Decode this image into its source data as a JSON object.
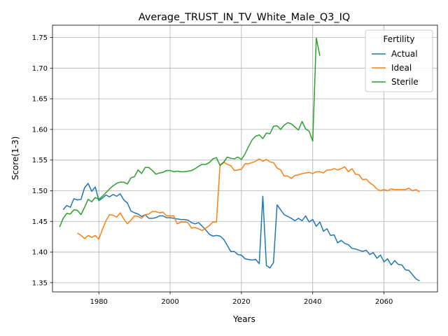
{
  "chart_data": {
    "type": "line",
    "title": "Average_TRUST_IN_TV_White_Male_Q3_IQ",
    "xlabel": "Years",
    "ylabel": "Score(1-3)",
    "xlim": [
      1967,
      2075
    ],
    "ylim": [
      1.335,
      1.77
    ],
    "x_ticks": [
      1980,
      2000,
      2020,
      2040,
      2060
    ],
    "y_ticks": [
      1.35,
      1.4,
      1.45,
      1.5,
      1.55,
      1.6,
      1.65,
      1.7,
      1.75
    ],
    "grid": true,
    "legend": {
      "title": "Fertility",
      "placement": "top-right"
    },
    "series": [
      {
        "name": "Actual",
        "color": "#1f77b4",
        "x": [
          1970,
          1971,
          1972,
          1973,
          1974,
          1975,
          1976,
          1977,
          1978,
          1979,
          1980,
          1981,
          1982,
          1983,
          1984,
          1985,
          1986,
          1987,
          1988,
          1989,
          1990,
          1991,
          1992,
          1993,
          1994,
          1995,
          1996,
          1997,
          1998,
          1999,
          2000,
          2001,
          2002,
          2003,
          2004,
          2005,
          2006,
          2007,
          2008,
          2009,
          2010,
          2011,
          2012,
          2013,
          2014,
          2015,
          2016,
          2017,
          2018,
          2019,
          2020,
          2021,
          2022,
          2023,
          2024,
          2025,
          2026,
          2027,
          2028,
          2029,
          2030,
          2031,
          2032,
          2033,
          2034,
          2035,
          2036,
          2037,
          2038,
          2039,
          2040,
          2041,
          2042,
          2043,
          2044,
          2045,
          2046,
          2047,
          2048,
          2049,
          2050,
          2051,
          2052,
          2053,
          2054,
          2055,
          2056,
          2057,
          2058,
          2059,
          2060,
          2061,
          2062,
          2063,
          2064,
          2065,
          2066,
          2067,
          2068,
          2069,
          2070
        ],
        "values": [
          1.469,
          1.476,
          1.473,
          1.487,
          1.485,
          1.486,
          1.505,
          1.512,
          1.499,
          1.506,
          1.484,
          1.488,
          1.493,
          1.49,
          1.494,
          1.491,
          1.495,
          1.485,
          1.48,
          1.467,
          1.464,
          1.462,
          1.458,
          1.461,
          1.455,
          1.455,
          1.456,
          1.459,
          1.459,
          1.456,
          1.456,
          1.455,
          1.454,
          1.453,
          1.453,
          1.452,
          1.448,
          1.446,
          1.448,
          1.442,
          1.436,
          1.429,
          1.426,
          1.427,
          1.426,
          1.421,
          1.411,
          1.401,
          1.401,
          1.396,
          1.395,
          1.389,
          1.388,
          1.387,
          1.388,
          1.381,
          1.491,
          1.378,
          1.374,
          1.383,
          1.477,
          1.469,
          1.461,
          1.458,
          1.455,
          1.451,
          1.455,
          1.451,
          1.459,
          1.449,
          1.453,
          1.442,
          1.449,
          1.434,
          1.438,
          1.427,
          1.428,
          1.415,
          1.419,
          1.414,
          1.412,
          1.406,
          1.405,
          1.403,
          1.401,
          1.403,
          1.396,
          1.399,
          1.39,
          1.395,
          1.384,
          1.389,
          1.379,
          1.386,
          1.38,
          1.379,
          1.371,
          1.37,
          1.363,
          1.356,
          1.353
        ]
      },
      {
        "name": "Ideal",
        "color": "#ff7f0e",
        "x": [
          1974,
          1975,
          1976,
          1977,
          1978,
          1979,
          1980,
          1981,
          1982,
          1983,
          1984,
          1985,
          1986,
          1987,
          1988,
          1989,
          1990,
          1991,
          1992,
          1993,
          1994,
          1995,
          1996,
          1997,
          1998,
          1999,
          2000,
          2001,
          2002,
          2003,
          2004,
          2005,
          2006,
          2007,
          2008,
          2009,
          2010,
          2011,
          2012,
          2013,
          2014,
          2015,
          2016,
          2017,
          2018,
          2019,
          2020,
          2021,
          2022,
          2023,
          2024,
          2025,
          2026,
          2027,
          2028,
          2029,
          2030,
          2031,
          2032,
          2033,
          2034,
          2035,
          2036,
          2037,
          2038,
          2039,
          2040,
          2041,
          2042,
          2043,
          2044,
          2045,
          2046,
          2047,
          2048,
          2049,
          2050,
          2051,
          2052,
          2053,
          2054,
          2055,
          2056,
          2057,
          2058,
          2059,
          2060,
          2061,
          2062,
          2063,
          2064,
          2065,
          2066,
          2067,
          2068,
          2069,
          2070
        ],
        "values": [
          1.431,
          1.427,
          1.422,
          1.427,
          1.424,
          1.427,
          1.421,
          1.437,
          1.451,
          1.461,
          1.46,
          1.457,
          1.464,
          1.454,
          1.446,
          1.452,
          1.459,
          1.458,
          1.455,
          1.461,
          1.462,
          1.466,
          1.466,
          1.464,
          1.465,
          1.459,
          1.459,
          1.459,
          1.446,
          1.449,
          1.449,
          1.448,
          1.439,
          1.44,
          1.438,
          1.435,
          1.439,
          1.443,
          1.449,
          1.449,
          1.542,
          1.547,
          1.543,
          1.541,
          1.533,
          1.534,
          1.535,
          1.544,
          1.544,
          1.546,
          1.548,
          1.552,
          1.548,
          1.551,
          1.547,
          1.546,
          1.537,
          1.534,
          1.524,
          1.524,
          1.52,
          1.525,
          1.526,
          1.528,
          1.529,
          1.53,
          1.528,
          1.531,
          1.531,
          1.529,
          1.534,
          1.534,
          1.536,
          1.534,
          1.536,
          1.539,
          1.531,
          1.536,
          1.527,
          1.526,
          1.518,
          1.519,
          1.513,
          1.509,
          1.503,
          1.5,
          1.502,
          1.5,
          1.503,
          1.502,
          1.502,
          1.502,
          1.502,
          1.504,
          1.5,
          1.502,
          1.498
        ]
      },
      {
        "name": "Sterile",
        "color": "#2ca02c",
        "x": [
          1969,
          1970,
          1971,
          1972,
          1973,
          1974,
          1975,
          1976,
          1977,
          1978,
          1979,
          1980,
          1981,
          1982,
          1983,
          1984,
          1985,
          1986,
          1987,
          1988,
          1989,
          1990,
          1991,
          1992,
          1993,
          1994,
          1995,
          1996,
          1997,
          1998,
          1999,
          2000,
          2001,
          2002,
          2003,
          2004,
          2005,
          2006,
          2007,
          2008,
          2009,
          2010,
          2011,
          2012,
          2013,
          2014,
          2015,
          2016,
          2017,
          2018,
          2019,
          2020,
          2021,
          2022,
          2023,
          2024,
          2025,
          2026,
          2027,
          2028,
          2029,
          2030,
          2031,
          2032,
          2033,
          2034,
          2035,
          2036,
          2037,
          2038,
          2039,
          2040,
          2041,
          2042
        ],
        "values": [
          1.441,
          1.455,
          1.463,
          1.462,
          1.469,
          1.468,
          1.461,
          1.473,
          1.486,
          1.482,
          1.489,
          1.486,
          1.491,
          1.497,
          1.503,
          1.508,
          1.512,
          1.514,
          1.514,
          1.511,
          1.521,
          1.523,
          1.534,
          1.528,
          1.538,
          1.538,
          1.533,
          1.527,
          1.529,
          1.53,
          1.533,
          1.533,
          1.531,
          1.532,
          1.531,
          1.531,
          1.532,
          1.533,
          1.536,
          1.54,
          1.543,
          1.543,
          1.546,
          1.552,
          1.554,
          1.541,
          1.546,
          1.555,
          1.553,
          1.552,
          1.555,
          1.551,
          1.56,
          1.572,
          1.583,
          1.589,
          1.591,
          1.585,
          1.594,
          1.593,
          1.605,
          1.606,
          1.6,
          1.607,
          1.611,
          1.609,
          1.604,
          1.599,
          1.613,
          1.601,
          1.597,
          1.581,
          1.749,
          1.72
        ]
      }
    ]
  }
}
